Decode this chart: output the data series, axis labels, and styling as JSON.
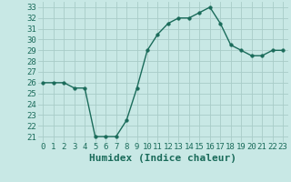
{
  "x": [
    0,
    1,
    2,
    3,
    4,
    5,
    6,
    7,
    8,
    9,
    10,
    11,
    12,
    13,
    14,
    15,
    16,
    17,
    18,
    19,
    20,
    21,
    22,
    23
  ],
  "y": [
    26,
    26,
    26,
    25.5,
    25.5,
    21,
    21,
    21,
    22.5,
    25.5,
    29,
    30.5,
    31.5,
    32,
    32,
    32.5,
    33,
    31.5,
    29.5,
    29,
    28.5,
    28.5,
    29,
    29
  ],
  "line_color": "#1a6b5a",
  "marker_color": "#1a6b5a",
  "bg_color": "#c8e8e5",
  "grid_color": "#a8ccc8",
  "xlabel": "Humidex (Indice chaleur)",
  "xlim": [
    -0.5,
    23.5
  ],
  "ylim": [
    20.5,
    33.5
  ],
  "yticks": [
    21,
    22,
    23,
    24,
    25,
    26,
    27,
    28,
    29,
    30,
    31,
    32,
    33
  ],
  "xticks": [
    0,
    1,
    2,
    3,
    4,
    5,
    6,
    7,
    8,
    9,
    10,
    11,
    12,
    13,
    14,
    15,
    16,
    17,
    18,
    19,
    20,
    21,
    22,
    23
  ],
  "tick_fontsize": 6.5,
  "label_fontsize": 8,
  "marker_size": 2.5,
  "line_width": 1.0
}
